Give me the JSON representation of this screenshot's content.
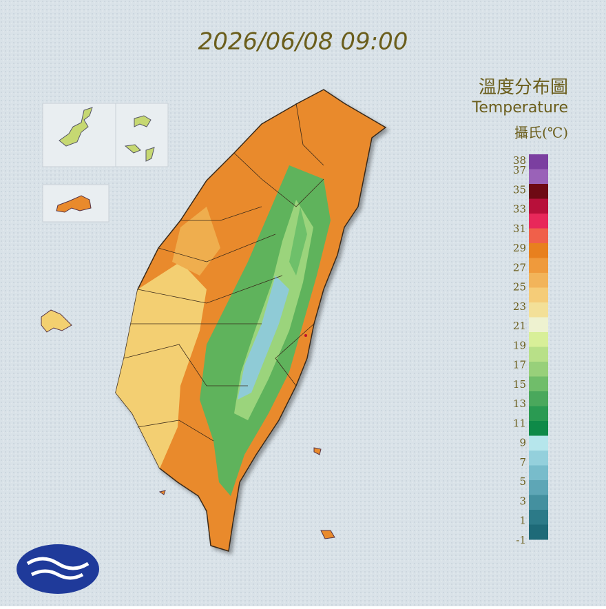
{
  "timestamp": "2026/06/08 09:00",
  "legend": {
    "title": "溫度分布圖",
    "subtitle": "Temperature",
    "unit": "攝氏(℃)",
    "ticks": [
      38,
      37,
      35,
      33,
      31,
      29,
      27,
      25,
      23,
      21,
      19,
      17,
      15,
      13,
      11,
      9,
      7,
      5,
      3,
      1,
      -1
    ],
    "colors": [
      "#7b3fa0",
      "#9a62b8",
      "#6e0a14",
      "#b8103a",
      "#e8285a",
      "#f0604a",
      "#e8801e",
      "#ef9a3c",
      "#f2b45a",
      "#f5cc78",
      "#f3e098",
      "#eef2d0",
      "#d8ef98",
      "#b8e088",
      "#98d07a",
      "#70bd6a",
      "#4aa85c",
      "#2a9a52",
      "#0e8a48",
      "#b6e6ec",
      "#94d0dc",
      "#78bccb",
      "#5ea6b6",
      "#44909f",
      "#2c7a88",
      "#1e6a78"
    ]
  }
}
